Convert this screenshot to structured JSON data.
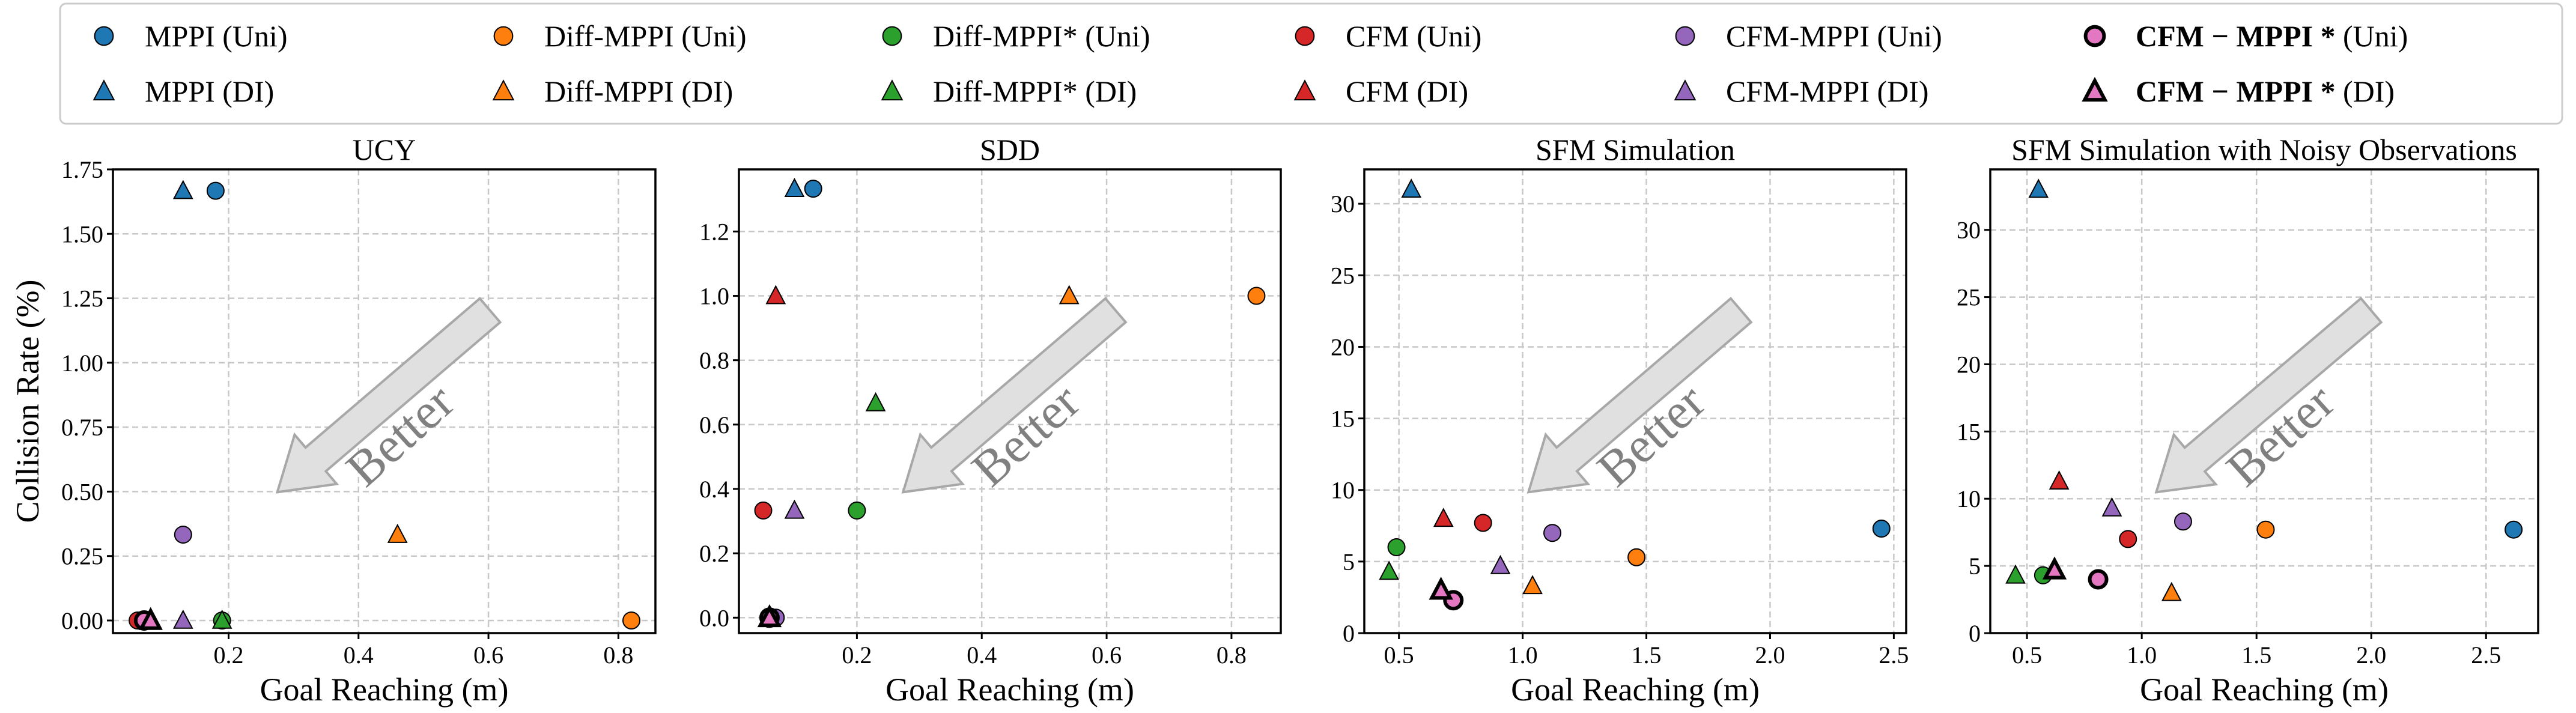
{
  "legend": {
    "placement": "top",
    "entries": [
      {
        "label": "MPPI (Uni)",
        "method": "MPPI",
        "marker": "circle",
        "color": "#1f77b4",
        "bold": false
      },
      {
        "label": "MPPI (DI)",
        "method": "MPPI",
        "marker": "triangle",
        "color": "#1f77b4",
        "bold": false
      },
      {
        "label": "Diff-MPPI (Uni)",
        "method": "Diff-MPPI",
        "marker": "circle",
        "color": "#ff7f0e",
        "bold": false
      },
      {
        "label": "Diff-MPPI (DI)",
        "method": "Diff-MPPI",
        "marker": "triangle",
        "color": "#ff7f0e",
        "bold": false
      },
      {
        "label": "Diff-MPPI* (Uni)",
        "method": "Diff-MPPI*",
        "marker": "circle",
        "color": "#2ca02c",
        "bold": false
      },
      {
        "label": "Diff-MPPI* (DI)",
        "method": "Diff-MPPI*",
        "marker": "triangle",
        "color": "#2ca02c",
        "bold": false
      },
      {
        "label": "CFM (Uni)",
        "method": "CFM",
        "marker": "circle",
        "color": "#d62728",
        "bold": false
      },
      {
        "label": "CFM (DI)",
        "method": "CFM",
        "marker": "triangle",
        "color": "#d62728",
        "bold": false
      },
      {
        "label": "CFM-MPPI (Uni)",
        "method": "CFM-MPPI",
        "marker": "circle",
        "color": "#9467bd",
        "bold": false
      },
      {
        "label": "CFM-MPPI (DI)",
        "method": "CFM-MPPI",
        "marker": "triangle",
        "color": "#9467bd",
        "bold": false
      },
      {
        "label": "CFM − MPPI *",
        "suffix": "(Uni)",
        "method": "CFM-MPPI*",
        "marker": "circle",
        "color": "#e377c2",
        "bold": true
      },
      {
        "label": "CFM − MPPI *",
        "suffix": "(DI)",
        "method": "CFM-MPPI*",
        "marker": "triangle",
        "color": "#e377c2",
        "bold": true
      }
    ]
  },
  "chart_data": [
    {
      "type": "scatter",
      "title": "UCY",
      "xlabel": "Goal Reaching (m)",
      "ylabel": "Collision Rate (%)",
      "xlim": [
        0.022,
        0.857
      ],
      "ylim": [
        -0.049,
        1.75
      ],
      "grid": true,
      "xticks": [
        "0.2",
        "0.4",
        "0.6",
        "0.8"
      ],
      "yticks": [
        "0.00",
        "0.25",
        "0.50",
        "0.75",
        "1.00",
        "1.25",
        "1.50",
        "1.75"
      ],
      "annotation": "Better",
      "points": [
        {
          "series": "MPPI (Uni)",
          "x": 0.18,
          "y": 1.667
        },
        {
          "series": "MPPI (DI)",
          "x": 0.13,
          "y": 1.667
        },
        {
          "series": "Diff-MPPI (Uni)",
          "x": 0.82,
          "y": 0.0
        },
        {
          "series": "Diff-MPPI (DI)",
          "x": 0.46,
          "y": 0.333
        },
        {
          "series": "Diff-MPPI* (Uni)",
          "x": 0.19,
          "y": 0.0
        },
        {
          "series": "Diff-MPPI* (DI)",
          "x": 0.19,
          "y": 0.0
        },
        {
          "series": "CFM (Uni)",
          "x": 0.06,
          "y": 0.0
        },
        {
          "series": "CFM-MPPI (Uni)",
          "x": 0.13,
          "y": 0.333
        },
        {
          "series": "CFM-MPPI (DI)",
          "x": 0.13,
          "y": 0.0
        },
        {
          "series": "CFM-MPPI* (Uni)",
          "x": 0.07,
          "y": 0.0
        },
        {
          "series": "CFM-MPPI* (DI)",
          "x": 0.08,
          "y": 0.0
        }
      ]
    },
    {
      "type": "scatter",
      "title": "SDD",
      "xlabel": "Goal Reaching (m)",
      "ylabel": "",
      "xlim": [
        0.011,
        0.879
      ],
      "ylim": [
        -0.048,
        1.393
      ],
      "grid": true,
      "xticks": [
        "0.2",
        "0.4",
        "0.6",
        "0.8"
      ],
      "yticks": [
        "0.0",
        "0.2",
        "0.4",
        "0.6",
        "0.8",
        "1.0",
        "1.2"
      ],
      "annotation": "Better",
      "points": [
        {
          "series": "MPPI (Uni)",
          "x": 0.13,
          "y": 1.333
        },
        {
          "series": "MPPI (DI)",
          "x": 0.1,
          "y": 1.333
        },
        {
          "series": "Diff-MPPI (Uni)",
          "x": 0.84,
          "y": 1.0
        },
        {
          "series": "Diff-MPPI (DI)",
          "x": 0.54,
          "y": 1.0
        },
        {
          "series": "Diff-MPPI* (Uni)",
          "x": 0.2,
          "y": 0.333
        },
        {
          "series": "Diff-MPPI* (DI)",
          "x": 0.23,
          "y": 0.667
        },
        {
          "series": "CFM (Uni)",
          "x": 0.05,
          "y": 0.333
        },
        {
          "series": "CFM (DI)",
          "x": 0.07,
          "y": 1.0
        },
        {
          "series": "CFM-MPPI (Uni)",
          "x": 0.07,
          "y": 0.0
        },
        {
          "series": "CFM-MPPI (DI)",
          "x": 0.1,
          "y": 0.333
        },
        {
          "series": "CFM-MPPI* (Uni)",
          "x": 0.06,
          "y": 0.0
        },
        {
          "series": "CFM-MPPI* (DI)",
          "x": 0.06,
          "y": 0.0
        }
      ]
    },
    {
      "type": "scatter",
      "title": "SFM Simulation",
      "xlabel": "Goal Reaching (m)",
      "ylabel": "",
      "xlim": [
        0.36,
        2.55
      ],
      "ylim": [
        0,
        32.4
      ],
      "grid": true,
      "xticks": [
        "0.5",
        "1.0",
        "1.5",
        "2.0",
        "2.5"
      ],
      "yticks": [
        "0",
        "5",
        "10",
        "15",
        "20",
        "25",
        "30"
      ],
      "annotation": "Better",
      "points": [
        {
          "series": "MPPI (Uni)",
          "x": 2.45,
          "y": 7.3
        },
        {
          "series": "MPPI (DI)",
          "x": 0.55,
          "y": 31.0
        },
        {
          "series": "Diff-MPPI (Uni)",
          "x": 1.46,
          "y": 5.3
        },
        {
          "series": "Diff-MPPI (DI)",
          "x": 1.04,
          "y": 3.3
        },
        {
          "series": "Diff-MPPI* (Uni)",
          "x": 0.49,
          "y": 6.0
        },
        {
          "series": "Diff-MPPI* (DI)",
          "x": 0.46,
          "y": 4.3
        },
        {
          "series": "CFM (Uni)",
          "x": 0.84,
          "y": 7.7
        },
        {
          "series": "CFM (DI)",
          "x": 0.68,
          "y": 8.0
        },
        {
          "series": "CFM-MPPI (Uni)",
          "x": 1.12,
          "y": 7.0
        },
        {
          "series": "CFM-MPPI (DI)",
          "x": 0.91,
          "y": 4.7
        },
        {
          "series": "CFM-MPPI* (Uni)",
          "x": 0.72,
          "y": 2.3
        },
        {
          "series": "CFM-MPPI* (DI)",
          "x": 0.67,
          "y": 3.0
        }
      ]
    },
    {
      "type": "scatter",
      "title": "SFM Simulation with Noisy Observations",
      "xlabel": "Goal Reaching (m)",
      "ylabel": "",
      "xlim": [
        0.34,
        2.727
      ],
      "ylim": [
        0,
        34.5
      ],
      "grid": true,
      "xticks": [
        "0.5",
        "1.0",
        "1.5",
        "2.0",
        "2.5"
      ],
      "yticks": [
        "0",
        "5",
        "10",
        "15",
        "20",
        "25",
        "30"
      ],
      "annotation": "Better",
      "points": [
        {
          "series": "MPPI (Uni)",
          "x": 2.62,
          "y": 7.7
        },
        {
          "series": "MPPI (DI)",
          "x": 0.55,
          "y": 33.0
        },
        {
          "series": "Diff-MPPI (Uni)",
          "x": 1.54,
          "y": 7.7
        },
        {
          "series": "Diff-MPPI (DI)",
          "x": 1.13,
          "y": 3.0
        },
        {
          "series": "Diff-MPPI* (Uni)",
          "x": 0.57,
          "y": 4.3
        },
        {
          "series": "Diff-MPPI* (DI)",
          "x": 0.45,
          "y": 4.3
        },
        {
          "series": "CFM (Uni)",
          "x": 0.94,
          "y": 7.0
        },
        {
          "series": "CFM (DI)",
          "x": 0.64,
          "y": 11.3
        },
        {
          "series": "CFM-MPPI (Uni)",
          "x": 1.18,
          "y": 8.3
        },
        {
          "series": "CFM-MPPI (DI)",
          "x": 0.87,
          "y": 9.3
        },
        {
          "series": "CFM-MPPI* (Uni)",
          "x": 0.81,
          "y": 4.0
        },
        {
          "series": "CFM-MPPI* (DI)",
          "x": 0.62,
          "y": 4.7
        }
      ]
    }
  ]
}
